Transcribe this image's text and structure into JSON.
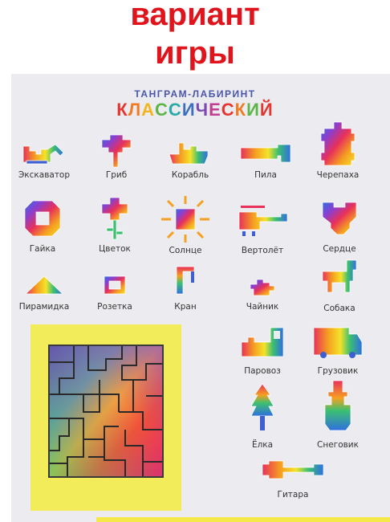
{
  "banner": {
    "line1": "вариант",
    "line2": "игры"
  },
  "header": {
    "subtitle": "ТАНГРАМ-ЛАБИРИНТ",
    "title": "КЛАССИЧЕСКИЙ"
  },
  "title_colors": [
    "#e5352f",
    "#f07b24",
    "#f2b51e",
    "#5db447",
    "#2aa9a6",
    "#3d6fc0",
    "#7b48b0",
    "#c23e8f",
    "#e5352f",
    "#f07b24",
    "#5db447"
  ],
  "figures": [
    {
      "label": "Экскаватор",
      "icon": "excavator-icon"
    },
    {
      "label": "Гриб",
      "icon": "mushroom-icon"
    },
    {
      "label": "Корабль",
      "icon": "ship-icon"
    },
    {
      "label": "Пила",
      "icon": "saw-icon"
    },
    {
      "label": "Черепаха",
      "icon": "turtle-icon"
    },
    {
      "label": "Гайка",
      "icon": "nut-icon"
    },
    {
      "label": "Цветок",
      "icon": "flower-icon"
    },
    {
      "label": "Солнце",
      "icon": "sun-icon"
    },
    {
      "label": "Вертолёт",
      "icon": "helicopter-icon"
    },
    {
      "label": "Сердце",
      "icon": "heart-icon"
    },
    {
      "label": "Пирамидка",
      "icon": "pyramid-icon"
    },
    {
      "label": "Розетка",
      "icon": "socket-icon"
    },
    {
      "label": "Кран",
      "icon": "crane-icon"
    },
    {
      "label": "Чайник",
      "icon": "teapot-icon"
    },
    {
      "label": "Собака",
      "icon": "dog-icon"
    },
    {
      "label": "Паровоз",
      "icon": "locomotive-icon"
    },
    {
      "label": "Грузовик",
      "icon": "truck-icon"
    },
    {
      "label": "Ёлка",
      "icon": "fir-tree-icon"
    },
    {
      "label": "Снеговик",
      "icon": "snowman-icon"
    },
    {
      "label": "Гитара",
      "icon": "guitar-icon"
    }
  ],
  "colors": {
    "banner_text": "#e0141c",
    "card_bg": "#ececf0",
    "puzzle_bg": "#f3ec5a",
    "subtitle": "#4a56a8"
  }
}
